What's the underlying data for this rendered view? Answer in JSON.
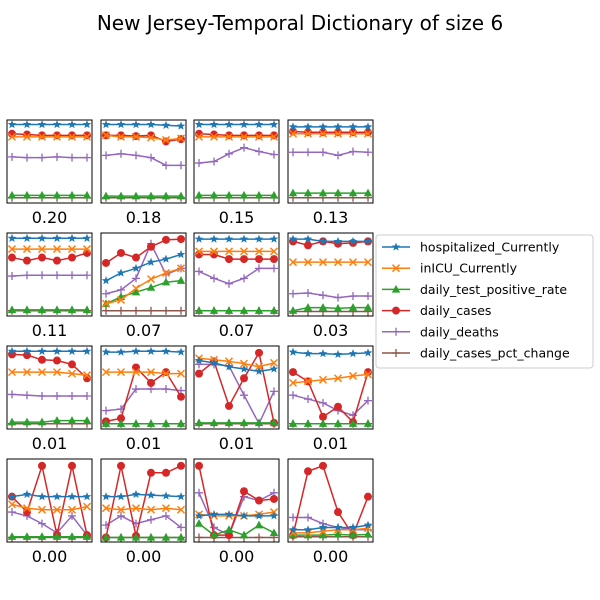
{
  "title": "New Jersey-Temporal Dictionary of size 6",
  "colors": {
    "hospitalized_Currently": "#1f77b4",
    "inICU_Currently": "#ff7f0e",
    "daily_test_positive_rate": "#2ca02c",
    "daily_cases": "#d62728",
    "daily_deaths": "#9467bd",
    "daily_cases_pct_change": "#8c564b"
  },
  "chart_data": {
    "type": "line",
    "title": "New Jersey-Temporal Dictionary of size 6",
    "layout": "4x4 small multiples",
    "x": [
      0,
      1,
      2,
      3,
      4,
      5
    ],
    "ylim": [
      0,
      1
    ],
    "legend": {
      "placement": "right",
      "entries": [
        {
          "name": "hospitalized_Currently",
          "marker": "star"
        },
        {
          "name": "inICU_Currently",
          "marker": "x"
        },
        {
          "name": "daily_test_positive_rate",
          "marker": "triangle"
        },
        {
          "name": "daily_cases",
          "marker": "circle"
        },
        {
          "name": "daily_deaths",
          "marker": "plus"
        },
        {
          "name": "daily_cases_pct_change",
          "marker": "plus"
        }
      ]
    },
    "panels": [
      {
        "label": "0.20",
        "series": {
          "hospitalized_Currently": [
            0.98,
            0.98,
            0.98,
            0.98,
            0.98,
            0.98
          ],
          "inICU_Currently": [
            0.82,
            0.82,
            0.82,
            0.82,
            0.82,
            0.82
          ],
          "daily_test_positive_rate": [
            0.06,
            0.06,
            0.06,
            0.06,
            0.06,
            0.06
          ],
          "daily_cases": [
            0.86,
            0.85,
            0.84,
            0.84,
            0.84,
            0.84
          ],
          "daily_deaths": [
            0.56,
            0.55,
            0.55,
            0.56,
            0.55,
            0.55
          ],
          "daily_cases_pct_change": [
            0.03,
            0.03,
            0.03,
            0.03,
            0.03,
            0.03
          ]
        }
      },
      {
        "label": "0.18",
        "series": {
          "hospitalized_Currently": [
            0.98,
            0.98,
            0.98,
            0.98,
            0.97,
            0.96
          ],
          "inICU_Currently": [
            0.84,
            0.82,
            0.82,
            0.81,
            0.78,
            0.8
          ],
          "daily_test_positive_rate": [
            0.05,
            0.05,
            0.05,
            0.05,
            0.05,
            0.05
          ],
          "daily_cases": [
            0.84,
            0.84,
            0.83,
            0.84,
            0.76,
            0.79
          ],
          "daily_deaths": [
            0.58,
            0.6,
            0.58,
            0.55,
            0.45,
            0.45
          ],
          "daily_cases_pct_change": [
            0.03,
            0.03,
            0.03,
            0.03,
            0.03,
            0.03
          ]
        }
      },
      {
        "label": "0.15",
        "series": {
          "hospitalized_Currently": [
            0.98,
            0.98,
            0.98,
            0.98,
            0.98,
            0.98
          ],
          "inICU_Currently": [
            0.82,
            0.82,
            0.82,
            0.82,
            0.82,
            0.82
          ],
          "daily_test_positive_rate": [
            0.06,
            0.06,
            0.06,
            0.06,
            0.06,
            0.06
          ],
          "daily_cases": [
            0.86,
            0.85,
            0.84,
            0.84,
            0.84,
            0.84
          ],
          "daily_deaths": [
            0.48,
            0.5,
            0.6,
            0.68,
            0.63,
            0.59
          ],
          "daily_cases_pct_change": [
            0.03,
            0.03,
            0.03,
            0.03,
            0.03,
            0.03
          ]
        }
      },
      {
        "label": "0.13",
        "series": {
          "hospitalized_Currently": [
            0.95,
            0.95,
            0.95,
            0.95,
            0.95,
            0.95
          ],
          "inICU_Currently": [
            0.86,
            0.86,
            0.86,
            0.86,
            0.86,
            0.86
          ],
          "daily_test_positive_rate": [
            0.09,
            0.09,
            0.09,
            0.09,
            0.09,
            0.09
          ],
          "daily_cases": [
            0.89,
            0.88,
            0.88,
            0.88,
            0.88,
            0.88
          ],
          "daily_deaths": [
            0.62,
            0.62,
            0.62,
            0.58,
            0.63,
            0.62
          ],
          "daily_cases_pct_change": [
            0.03,
            0.03,
            0.03,
            0.03,
            0.03,
            0.03
          ]
        }
      },
      {
        "label": "0.11",
        "series": {
          "hospitalized_Currently": [
            0.97,
            0.97,
            0.97,
            0.97,
            0.97,
            0.97
          ],
          "inICU_Currently": [
            0.83,
            0.83,
            0.83,
            0.83,
            0.83,
            0.83
          ],
          "daily_test_positive_rate": [
            0.04,
            0.04,
            0.04,
            0.04,
            0.04,
            0.04
          ],
          "daily_cases": [
            0.72,
            0.68,
            0.72,
            0.68,
            0.72,
            0.78
          ],
          "daily_deaths": [
            0.48,
            0.49,
            0.49,
            0.49,
            0.49,
            0.49
          ],
          "daily_cases_pct_change": [
            0.03,
            0.03,
            0.03,
            0.03,
            0.03,
            0.03
          ]
        }
      },
      {
        "label": "0.07",
        "series": {
          "hospitalized_Currently": [
            0.42,
            0.52,
            0.58,
            0.66,
            0.7,
            0.76
          ],
          "inICU_Currently": [
            0.12,
            0.17,
            0.32,
            0.44,
            0.52,
            0.58
          ],
          "daily_test_positive_rate": [
            0.12,
            0.21,
            0.27,
            0.33,
            0.4,
            0.42
          ],
          "daily_cases": [
            0.65,
            0.78,
            0.72,
            0.86,
            0.95,
            0.96
          ],
          "daily_deaths": [
            0.25,
            0.3,
            0.45,
            0.9,
            0.5,
            0.58
          ],
          "daily_cases_pct_change": [
            0.03,
            0.03,
            0.03,
            0.03,
            0.03,
            0.03
          ]
        }
      },
      {
        "label": "0.07",
        "series": {
          "hospitalized_Currently": [
            0.96,
            0.96,
            0.96,
            0.96,
            0.96,
            0.96
          ],
          "inICU_Currently": [
            0.8,
            0.8,
            0.8,
            0.8,
            0.8,
            0.8
          ],
          "daily_test_positive_rate": [
            0.03,
            0.03,
            0.03,
            0.03,
            0.03,
            0.03
          ],
          "daily_cases": [
            0.76,
            0.76,
            0.7,
            0.7,
            0.7,
            0.7
          ],
          "daily_deaths": [
            0.54,
            0.45,
            0.38,
            0.45,
            0.58,
            0.58
          ],
          "daily_cases_pct_change": [
            0.03,
            0.03,
            0.03,
            0.03,
            0.03,
            0.03
          ]
        }
      },
      {
        "label": "0.03",
        "series": {
          "hospitalized_Currently": [
            0.96,
            0.96,
            0.93,
            0.93,
            0.93,
            0.93
          ],
          "inICU_Currently": [
            0.66,
            0.66,
            0.66,
            0.66,
            0.66,
            0.66
          ],
          "daily_test_positive_rate": [
            0.03,
            0.07,
            0.07,
            0.06,
            0.07,
            0.07
          ],
          "daily_cases": [
            0.93,
            0.88,
            0.93,
            0.9,
            0.91,
            0.93
          ],
          "daily_deaths": [
            0.25,
            0.26,
            0.23,
            0.2,
            0.22,
            0.22
          ],
          "daily_cases_pct_change": [
            0.02,
            0.02,
            0.02,
            0.02,
            0.02,
            0.02
          ]
        }
      },
      {
        "label": "0.01",
        "series": {
          "hospitalized_Currently": [
            0.97,
            0.97,
            0.97,
            0.97,
            0.97,
            0.97
          ],
          "inICU_Currently": [
            0.7,
            0.7,
            0.7,
            0.7,
            0.68,
            0.66
          ],
          "daily_test_positive_rate": [
            0.05,
            0.05,
            0.05,
            0.07,
            0.07,
            0.07
          ],
          "daily_cases": [
            0.93,
            0.92,
            0.86,
            0.85,
            0.8,
            0.62
          ],
          "daily_deaths": [
            0.41,
            0.4,
            0.39,
            0.39,
            0.39,
            0.39
          ],
          "daily_cases_pct_change": [
            0.03,
            0.03,
            0.03,
            0.03,
            0.03,
            0.03
          ]
        }
      },
      {
        "label": "0.01",
        "series": {
          "hospitalized_Currently": [
            0.96,
            0.96,
            0.97,
            0.97,
            0.97,
            0.96
          ],
          "inICU_Currently": [
            0.7,
            0.7,
            0.7,
            0.7,
            0.68,
            0.68
          ],
          "daily_test_positive_rate": [
            0.03,
            0.03,
            0.03,
            0.03,
            0.03,
            0.03
          ],
          "daily_cases": [
            0.06,
            0.1,
            0.76,
            0.56,
            0.7,
            0.38
          ],
          "daily_deaths": [
            0.2,
            0.22,
            0.48,
            0.48,
            0.48,
            0.46
          ],
          "daily_cases_pct_change": [
            0.03,
            0.03,
            0.03,
            0.03,
            0.03,
            0.03
          ]
        }
      },
      {
        "label": "0.01",
        "series": {
          "hospitalized_Currently": [
            0.85,
            0.82,
            0.77,
            0.74,
            0.71,
            0.74
          ],
          "inICU_Currently": [
            0.88,
            0.86,
            0.84,
            0.81,
            0.77,
            0.82
          ],
          "daily_test_positive_rate": [
            0.04,
            0.04,
            0.04,
            0.04,
            0.04,
            0.04
          ],
          "daily_cases": [
            0.68,
            0.84,
            0.26,
            0.62,
            0.95,
            0.04
          ],
          "daily_deaths": [
            0.8,
            0.8,
            0.78,
            0.4,
            0.03,
            0.45
          ],
          "daily_cases_pct_change": [
            0.03,
            0.03,
            0.03,
            0.03,
            0.03,
            0.03
          ]
        }
      },
      {
        "label": "0.01",
        "series": {
          "hospitalized_Currently": [
            0.96,
            0.94,
            0.94,
            0.93,
            0.94,
            0.95
          ],
          "inICU_Currently": [
            0.56,
            0.58,
            0.6,
            0.62,
            0.65,
            0.67
          ],
          "daily_test_positive_rate": [
            0.03,
            0.03,
            0.03,
            0.03,
            0.03,
            0.03
          ],
          "daily_cases": [
            0.7,
            0.58,
            0.12,
            0.25,
            0.05,
            0.7
          ],
          "daily_deaths": [
            0.4,
            0.35,
            0.3,
            0.2,
            0.14,
            0.33
          ],
          "daily_cases_pct_change": [
            0.03,
            0.03,
            0.03,
            0.03,
            0.03,
            0.03
          ]
        }
      },
      {
        "label": "0.00",
        "series": {
          "hospitalized_Currently": [
            0.55,
            0.58,
            0.55,
            0.55,
            0.55,
            0.55
          ],
          "inICU_Currently": [
            0.45,
            0.4,
            0.38,
            0.38,
            0.38,
            0.42
          ],
          "daily_test_positive_rate": [
            0.03,
            0.03,
            0.03,
            0.03,
            0.03,
            0.03
          ],
          "daily_cases": [
            0.55,
            0.35,
            0.95,
            0.05,
            0.95,
            0.05
          ],
          "daily_deaths": [
            0.35,
            0.3,
            0.2,
            0.08,
            0.3,
            0.05
          ],
          "daily_cases_pct_change": [
            0.02,
            0.02,
            0.02,
            0.02,
            0.02,
            0.02
          ]
        }
      },
      {
        "label": "0.00",
        "series": {
          "hospitalized_Currently": [
            0.55,
            0.55,
            0.58,
            0.57,
            0.56,
            0.55
          ],
          "inICU_Currently": [
            0.4,
            0.38,
            0.4,
            0.38,
            0.4,
            0.38
          ],
          "daily_test_positive_rate": [
            0.02,
            0.02,
            0.02,
            0.02,
            0.02,
            0.02
          ],
          "daily_cases": [
            0.02,
            0.95,
            0.04,
            0.86,
            0.86,
            0.95
          ],
          "daily_deaths": [
            0.18,
            0.3,
            0.2,
            0.25,
            0.3,
            0.15
          ],
          "daily_cases_pct_change": [
            0.02,
            0.02,
            0.02,
            0.02,
            0.02,
            0.02
          ]
        }
      },
      {
        "label": "0.00",
        "series": {
          "hospitalized_Currently": [
            0.3,
            0.32,
            0.32,
            0.3,
            0.3,
            0.3
          ],
          "inICU_Currently": [
            0.32,
            0.3,
            0.3,
            0.3,
            0.32,
            0.35
          ],
          "daily_test_positive_rate": [
            0.2,
            0.05,
            0.12,
            0.05,
            0.18,
            0.08
          ],
          "daily_cases": [
            0.95,
            0.05,
            0.05,
            0.62,
            0.5,
            0.52
          ],
          "daily_deaths": [
            0.6,
            0.15,
            0.05,
            0.55,
            0.5,
            0.6
          ],
          "daily_cases_pct_change": [
            0.02,
            0.02,
            0.02,
            0.02,
            0.02,
            0.02
          ]
        }
      },
      {
        "label": "0.00",
        "series": {
          "hospitalized_Currently": [
            0.12,
            0.12,
            0.15,
            0.15,
            0.15,
            0.18
          ],
          "inICU_Currently": [
            0.08,
            0.08,
            0.1,
            0.12,
            0.12,
            0.14
          ],
          "daily_test_positive_rate": [
            0.05,
            0.05,
            0.05,
            0.06,
            0.05,
            0.06
          ],
          "daily_cases": [
            0.05,
            0.88,
            0.95,
            0.35,
            0.05,
            0.55
          ],
          "daily_deaths": [
            0.28,
            0.28,
            0.2,
            0.15,
            0.12,
            0.12
          ],
          "daily_cases_pct_change": [
            0.03,
            0.03,
            0.03,
            0.03,
            0.03,
            0.03
          ]
        }
      }
    ]
  }
}
